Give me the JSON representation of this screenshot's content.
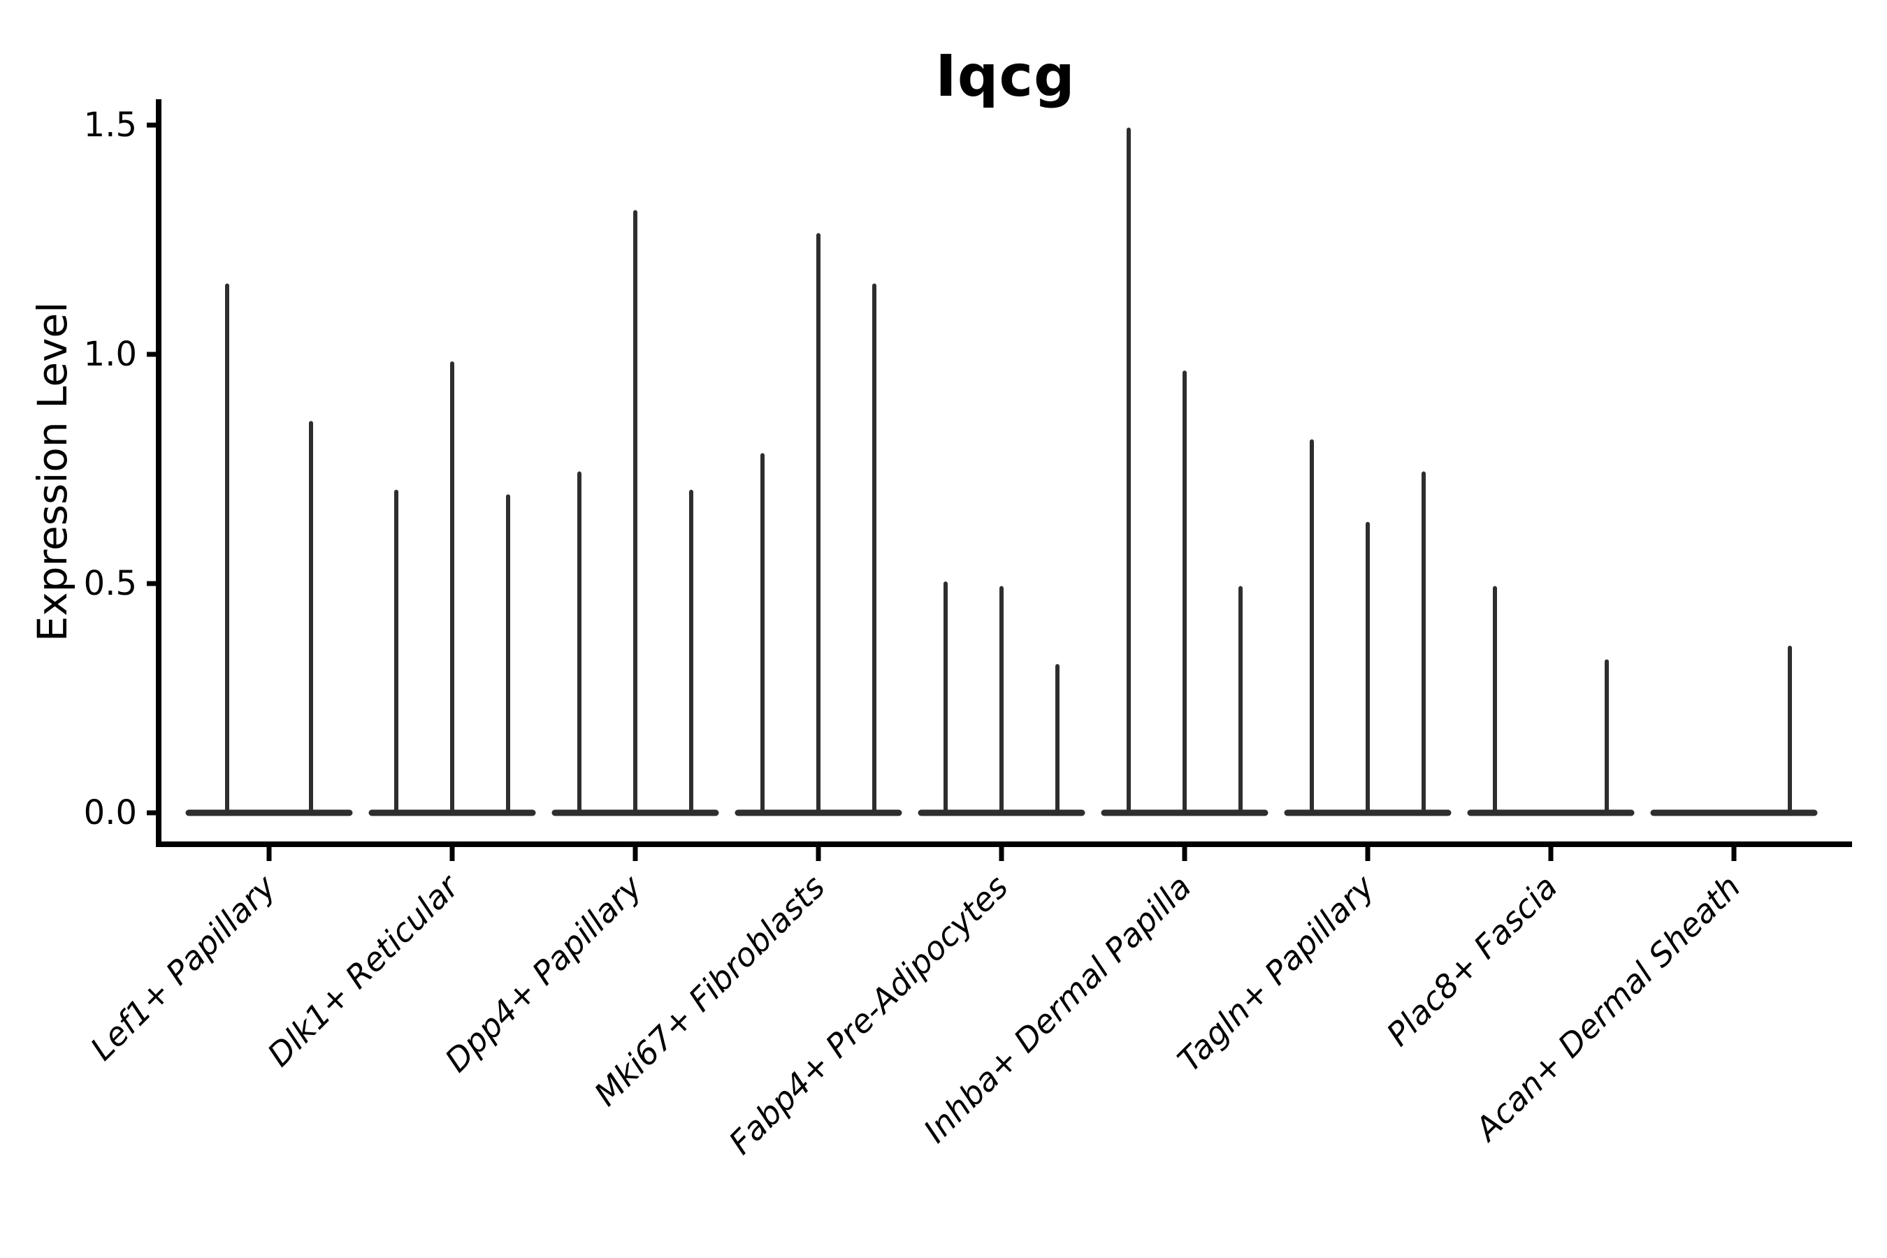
{
  "chart_data": {
    "type": "violin",
    "title": "Iqcg",
    "xlabel": "",
    "ylabel": "Expression Level",
    "legend": "none",
    "grid": false,
    "background": "#ffffff",
    "axis_color": "#000000",
    "violin_color": "#2e2e2e",
    "text_color": "#000000",
    "ylim": [
      0.0,
      1.56
    ],
    "yticks": [
      {
        "v": 0.0,
        "label": "0.0"
      },
      {
        "v": 0.5,
        "label": "0.5"
      },
      {
        "v": 1.0,
        "label": "1.0"
      },
      {
        "v": 1.5,
        "label": "1.5"
      }
    ],
    "x_tick_rotation_deg": 45,
    "x_tick_style": "italic",
    "categories": [
      "Lef1+ Papillary",
      "Dlk1+ Reticular",
      "Dpp4+ Papillary",
      "Mki67+ Fibroblasts",
      "Fabp4+ Pre-Adipocytes",
      "Inhba+ Dermal Papilla",
      "Tagln+ Papillary",
      "Plac8+ Fascia",
      "Acan+ Dermal Sheath"
    ],
    "series_note": "Each group holds thin split violins; value = max expression spike height, 0 = flat violin (all-zero expression)",
    "groups": [
      {
        "label": "Lef1+ Papillary",
        "spikes": [
          1.15,
          0.85
        ]
      },
      {
        "label": "Dlk1+ Reticular",
        "spikes": [
          0.7,
          0.98,
          0.69
        ]
      },
      {
        "label": "Dpp4+ Papillary",
        "spikes": [
          0.74,
          1.31,
          0.7
        ]
      },
      {
        "label": "Mki67+ Fibroblasts",
        "spikes": [
          0.78,
          1.26,
          1.15
        ]
      },
      {
        "label": "Fabp4+ Pre-Adipocytes",
        "spikes": [
          0.5,
          0.49,
          0.32
        ]
      },
      {
        "label": "Inhba+ Dermal Papilla",
        "spikes": [
          1.49,
          0.96,
          0.49
        ]
      },
      {
        "label": "Tagln+ Papillary",
        "spikes": [
          0.81,
          0.63,
          0.74
        ]
      },
      {
        "label": "Plac8+ Fascia",
        "spikes": [
          0.49,
          0.0,
          0.33
        ]
      },
      {
        "label": "Acan+ Dermal Sheath",
        "spikes": [
          0.0,
          0.0,
          0.36
        ]
      }
    ]
  }
}
